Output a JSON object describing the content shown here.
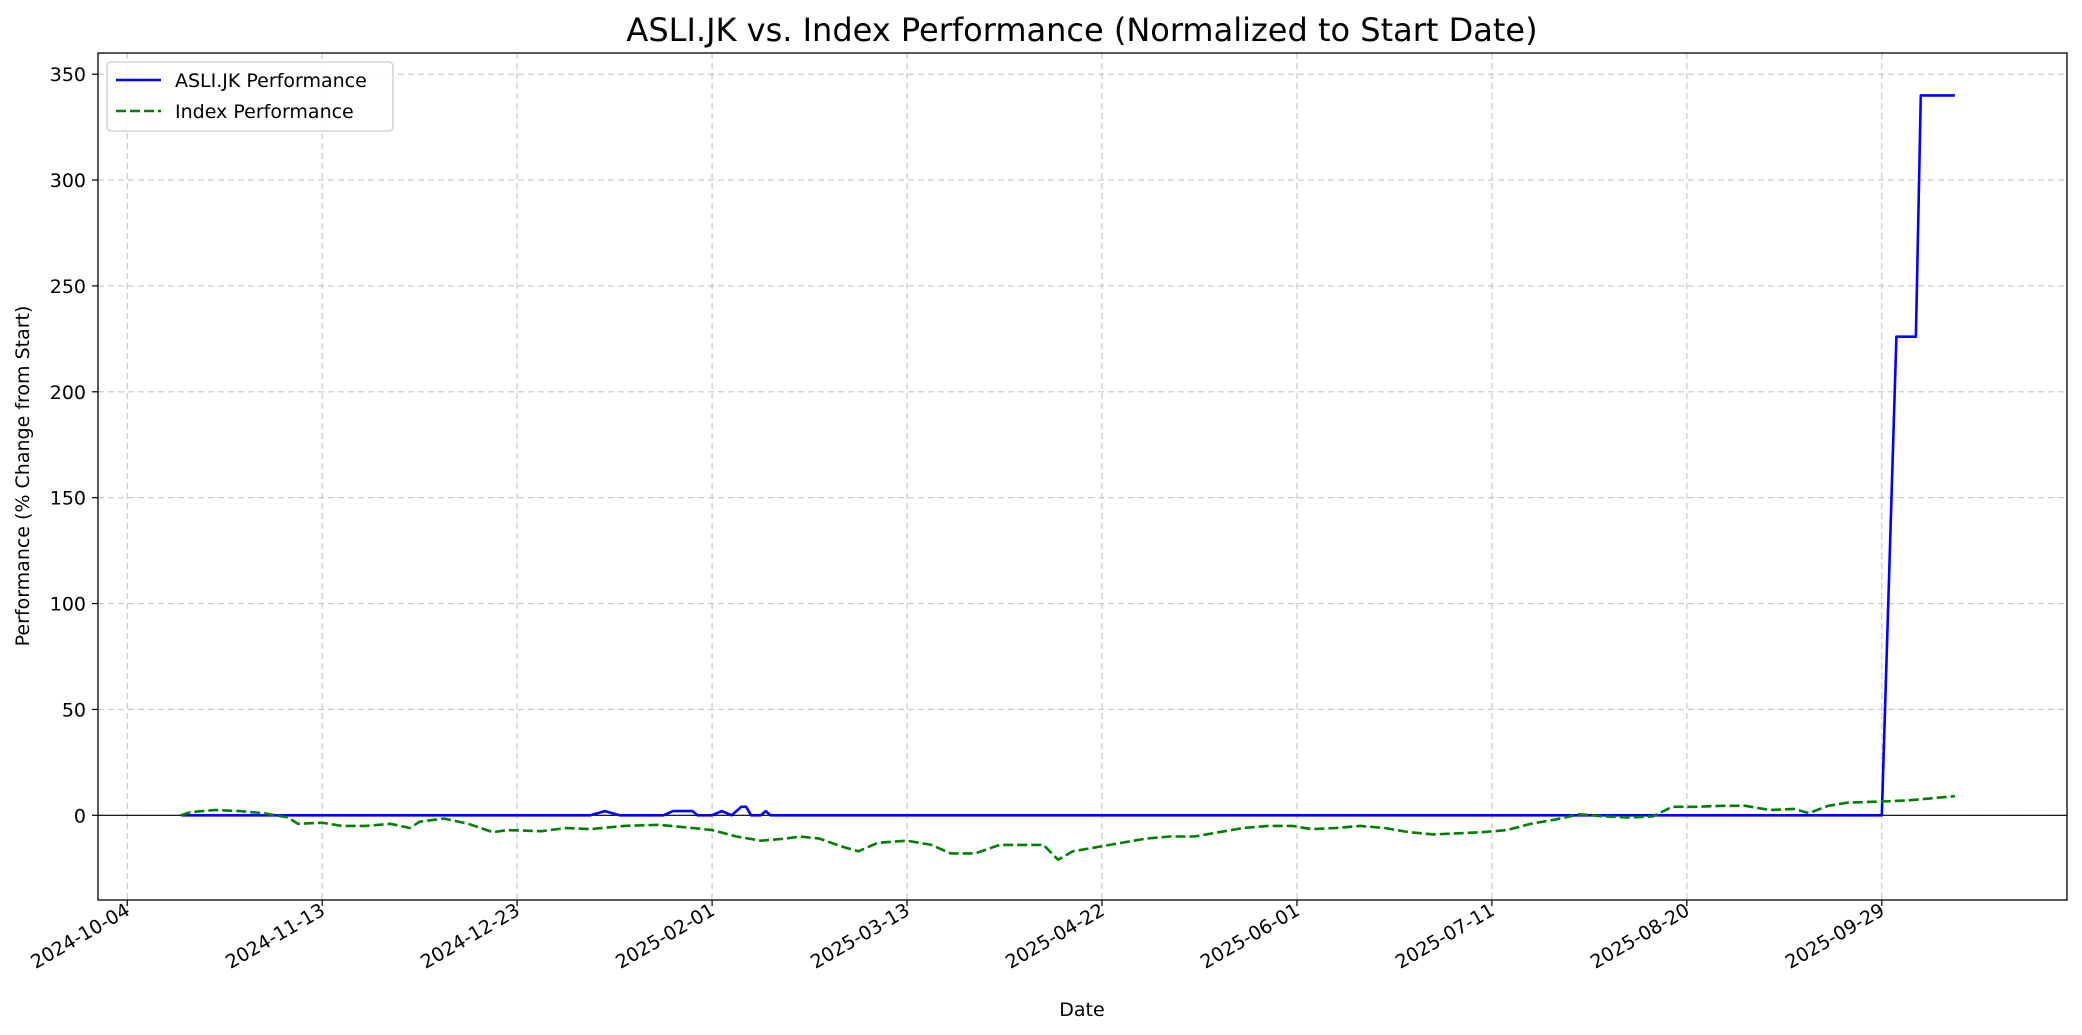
{
  "chart_data": {
    "type": "line",
    "title": "ASLI.JK vs. Index Performance (Normalized to Start Date)",
    "xlabel": "Date",
    "ylabel": "Performance (% Change from Start)",
    "xlim": [
      "2024-09-28",
      "2025-11-06"
    ],
    "ylim": [
      -40,
      360
    ],
    "x_ticks": [
      "2024-10-04",
      "2024-11-13",
      "2024-12-23",
      "2025-02-01",
      "2025-03-13",
      "2025-04-22",
      "2025-06-01",
      "2025-07-11",
      "2025-08-20",
      "2025-09-29"
    ],
    "y_ticks": [
      0,
      50,
      100,
      150,
      200,
      250,
      300,
      350
    ],
    "grid": true,
    "legend_position": "top-left",
    "zero_line": true,
    "series": [
      {
        "name": "ASLI.JK Performance",
        "color": "#0000ff",
        "style": "solid",
        "points": [
          [
            "2024-10-15",
            0
          ],
          [
            "2025-01-07",
            0
          ],
          [
            "2025-01-10",
            2
          ],
          [
            "2025-01-13",
            0
          ],
          [
            "2025-01-22",
            0
          ],
          [
            "2025-01-24",
            2
          ],
          [
            "2025-01-28",
            2
          ],
          [
            "2025-01-29",
            0
          ],
          [
            "2025-02-01",
            0
          ],
          [
            "2025-02-03",
            2
          ],
          [
            "2025-02-05",
            0
          ],
          [
            "2025-02-07",
            4
          ],
          [
            "2025-02-08",
            4
          ],
          [
            "2025-02-09",
            0
          ],
          [
            "2025-02-11",
            0
          ],
          [
            "2025-02-12",
            2
          ],
          [
            "2025-02-13",
            0
          ],
          [
            "2025-09-29",
            0
          ],
          [
            "2025-10-02",
            226
          ],
          [
            "2025-10-06",
            226
          ],
          [
            "2025-10-07",
            340
          ],
          [
            "2025-10-14",
            340
          ]
        ]
      },
      {
        "name": "Index Performance",
        "color": "#008000",
        "style": "dashed",
        "points": [
          [
            "2024-10-15",
            0
          ],
          [
            "2024-10-17",
            1.5
          ],
          [
            "2024-10-22",
            2.5
          ],
          [
            "2024-10-27",
            2
          ],
          [
            "2024-11-01",
            1
          ],
          [
            "2024-11-06",
            -1
          ],
          [
            "2024-11-08",
            -4
          ],
          [
            "2024-11-13",
            -3.5
          ],
          [
            "2024-11-17",
            -5
          ],
          [
            "2024-11-22",
            -5
          ],
          [
            "2024-11-27",
            -4
          ],
          [
            "2024-12-01",
            -6
          ],
          [
            "2024-12-03",
            -3
          ],
          [
            "2024-12-08",
            -1.5
          ],
          [
            "2024-12-13",
            -4
          ],
          [
            "2024-12-18",
            -8
          ],
          [
            "2024-12-21",
            -7
          ],
          [
            "2024-12-28",
            -7.5
          ],
          [
            "2025-01-02",
            -6
          ],
          [
            "2025-01-07",
            -6.5
          ],
          [
            "2025-01-14",
            -5
          ],
          [
            "2025-01-21",
            -4.5
          ],
          [
            "2025-01-28",
            -6
          ],
          [
            "2025-02-01",
            -7
          ],
          [
            "2025-02-06",
            -10
          ],
          [
            "2025-02-11",
            -12
          ],
          [
            "2025-02-16",
            -11
          ],
          [
            "2025-02-19",
            -10
          ],
          [
            "2025-02-23",
            -11
          ],
          [
            "2025-02-28",
            -15
          ],
          [
            "2025-03-03",
            -17
          ],
          [
            "2025-03-07",
            -13
          ],
          [
            "2025-03-13",
            -12
          ],
          [
            "2025-03-18",
            -14
          ],
          [
            "2025-03-22",
            -18
          ],
          [
            "2025-03-27",
            -18
          ],
          [
            "2025-04-01",
            -14
          ],
          [
            "2025-04-10",
            -14
          ],
          [
            "2025-04-13",
            -21
          ],
          [
            "2025-04-16",
            -17
          ],
          [
            "2025-04-21",
            -15
          ],
          [
            "2025-04-26",
            -13
          ],
          [
            "2025-05-01",
            -11
          ],
          [
            "2025-05-06",
            -10
          ],
          [
            "2025-05-11",
            -10
          ],
          [
            "2025-05-16",
            -8
          ],
          [
            "2025-05-21",
            -6
          ],
          [
            "2025-05-26",
            -5
          ],
          [
            "2025-05-31",
            -5
          ],
          [
            "2025-06-04",
            -6.5
          ],
          [
            "2025-06-09",
            -6
          ],
          [
            "2025-06-14",
            -5
          ],
          [
            "2025-06-19",
            -6
          ],
          [
            "2025-06-24",
            -8
          ],
          [
            "2025-06-29",
            -9
          ],
          [
            "2025-07-04",
            -8.5
          ],
          [
            "2025-07-09",
            -8
          ],
          [
            "2025-07-14",
            -7
          ],
          [
            "2025-07-19",
            -4
          ],
          [
            "2025-07-24",
            -2
          ],
          [
            "2025-07-29",
            0.5
          ],
          [
            "2025-08-03",
            -0.5
          ],
          [
            "2025-08-08",
            -1
          ],
          [
            "2025-08-13",
            -0.5
          ],
          [
            "2025-08-17",
            4
          ],
          [
            "2025-08-22",
            4
          ],
          [
            "2025-08-27",
            4.5
          ],
          [
            "2025-09-01",
            4.5
          ],
          [
            "2025-09-06",
            2.5
          ],
          [
            "2025-09-11",
            3
          ],
          [
            "2025-09-14",
            1
          ],
          [
            "2025-09-18",
            4.5
          ],
          [
            "2025-09-22",
            6
          ],
          [
            "2025-09-29",
            6.5
          ],
          [
            "2025-10-04",
            7
          ],
          [
            "2025-10-09",
            8
          ],
          [
            "2025-10-14",
            9
          ]
        ]
      }
    ]
  }
}
